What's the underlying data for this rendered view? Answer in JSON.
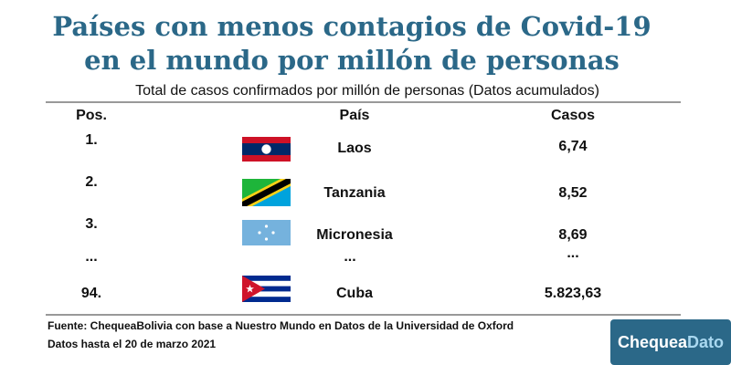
{
  "header": {
    "title_lines": [
      "Países con menos contagios de Covid-19",
      "en el mundo por millón de personas"
    ],
    "subtitle": "Total de casos confirmados por millón de personas (Datos acumulados)"
  },
  "table": {
    "columns": [
      "Pos.",
      "País",
      "Casos"
    ],
    "rows": [
      [
        "1.",
        "Laos",
        "6,74"
      ],
      [
        "2.",
        "Tanzania",
        "8,52"
      ],
      [
        "3.",
        "Micronesia",
        "8,69"
      ],
      [
        "...",
        "...",
        "..."
      ],
      [
        "94.",
        "Cuba",
        "5.823,63"
      ]
    ]
  },
  "footer": {
    "lines": [
      "Fuente: ChequeaBolivia con base a Nuestro Mundo en Datos de la Universidad de Oxford",
      "Datos hasta el 20 de marzo 2021"
    ]
  },
  "logo": {
    "parts": [
      "Chequea",
      "Dato"
    ]
  }
}
